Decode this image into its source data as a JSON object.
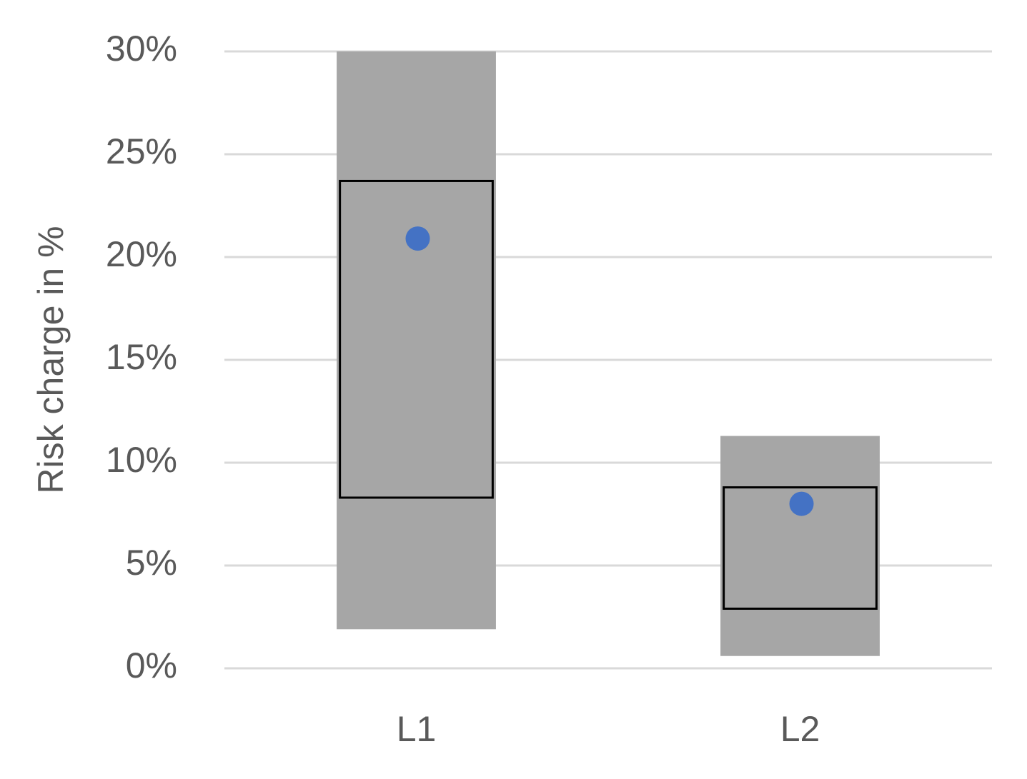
{
  "chart_data": {
    "type": "range",
    "y_label": "Risk charge in %",
    "categories": [
      "L1",
      "L2"
    ],
    "outer_low": [
      1.9,
      0.6
    ],
    "outer_high": [
      30,
      11.3
    ],
    "inner_low": [
      8.3,
      2.9
    ],
    "inner_high": [
      23.7,
      8.8
    ],
    "values": [
      20.9,
      8.0
    ],
    "range_color": "#a6a6a6",
    "box_border_color": "#000000",
    "point_color": "#4472c4",
    "ylim": [
      0,
      30
    ],
    "yticks": [
      {
        "value": 0,
        "label": "0%"
      },
      {
        "value": 5,
        "label": "5%"
      },
      {
        "value": 10,
        "label": "10%"
      },
      {
        "value": 15,
        "label": "15%"
      },
      {
        "value": 20,
        "label": "20%"
      },
      {
        "value": 25,
        "label": "25%"
      },
      {
        "value": 30,
        "label": "30%"
      }
    ],
    "grid": true
  }
}
